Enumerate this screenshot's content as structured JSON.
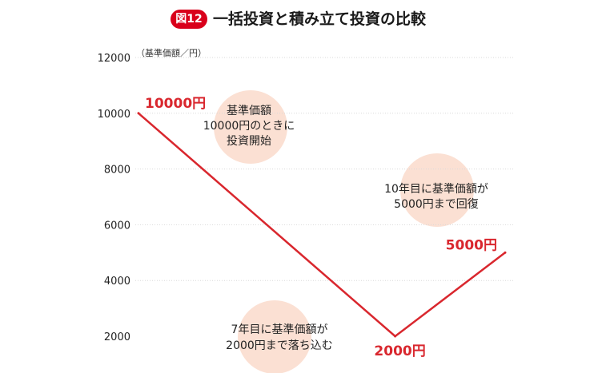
{
  "header": {
    "badge": "図12",
    "title": "一括投資と積み立て投資の比較"
  },
  "unit_label": "（基準価額／円）",
  "theme": {
    "line": "#d9272e",
    "bubble": "#fbe0d3",
    "grid": "#d9d9d9",
    "badge": "#d9001b"
  },
  "chart_data": {
    "type": "line",
    "x": [
      0,
      7,
      10
    ],
    "xlim": [
      0,
      10
    ],
    "ylim": [
      2000,
      12000
    ],
    "yticks": [
      2000,
      4000,
      6000,
      8000,
      10000,
      12000
    ],
    "series": [
      {
        "values": [
          10000,
          2000,
          5000
        ]
      }
    ],
    "point_labels": [
      "10000円",
      "2000円",
      "5000円"
    ],
    "annotations": [
      {
        "id": "start",
        "lines": [
          "基準価額",
          "10000円のときに",
          "投資開始"
        ]
      },
      {
        "id": "bottom",
        "lines": [
          "7年目に基準価額が",
          "2000円まで落ち込む"
        ]
      },
      {
        "id": "recover",
        "lines": [
          "10年目に基準価額が",
          "5000円まで回復"
        ]
      }
    ]
  }
}
